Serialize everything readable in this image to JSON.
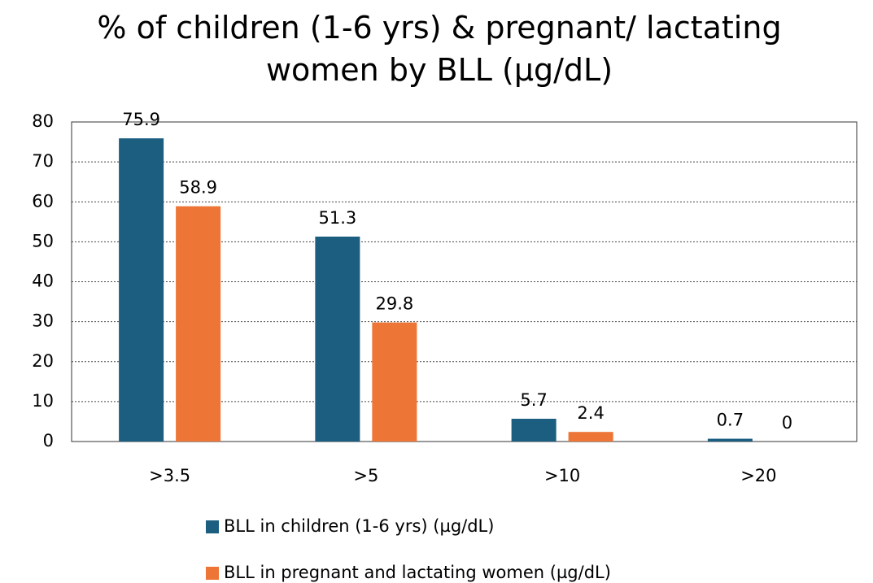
{
  "chart_data": {
    "type": "bar",
    "title": "% of children (1-6 yrs) & pregnant/ lactating women by BLL (µg/dL)",
    "categories": [
      ">3.5",
      ">5",
      ">10",
      ">20"
    ],
    "series": [
      {
        "name": "BLL in children (1-6 yrs) (µg/dL)",
        "color": "#1b5e80",
        "values": [
          75.9,
          51.3,
          5.7,
          0.7
        ]
      },
      {
        "name": "BLL in pregnant and lactating women (µg/dL)",
        "color": "#ed7535",
        "values": [
          58.9,
          29.8,
          2.4,
          0
        ]
      }
    ],
    "ylim": [
      0,
      80
    ],
    "yticks": [
      0,
      10,
      20,
      30,
      40,
      50,
      60,
      70,
      80
    ],
    "grid": true,
    "legend": "bottom"
  }
}
